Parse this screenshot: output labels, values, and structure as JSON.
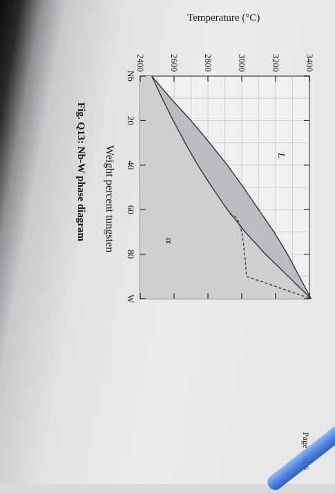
{
  "chart_data": {
    "type": "phase diagram",
    "title": "Fig. Q13: Nb-W phase diagram",
    "xlabel": "Weight percent tungsten",
    "ylabel": "Temperature (°C)",
    "xlim": [
      0,
      100
    ],
    "ylim": [
      2400,
      3400
    ],
    "x_ticks": [
      "Nb",
      "20",
      "40",
      "60",
      "80",
      "W"
    ],
    "y_ticks": [
      "2400",
      "2600",
      "2800",
      "3000",
      "3200",
      "3400"
    ],
    "regions": [
      {
        "label": "L",
        "x": 35,
        "y": 3180
      },
      {
        "label": "α",
        "x": 72,
        "y": 2700
      }
    ],
    "series": [
      {
        "name": "",
        "line": "liquidus",
        "x": [
          0,
          10,
          20,
          30,
          40,
          50,
          60,
          70,
          80,
          90,
          100
        ],
        "y": [
          2468,
          2580,
          2700,
          2810,
          2915,
          3010,
          3100,
          3190,
          3270,
          3340,
          3410
        ]
      },
      {
        "name": "",
        "line": "solidus",
        "x": [
          0,
          10,
          20,
          30,
          40,
          50,
          60,
          70,
          80,
          90,
          100
        ],
        "y": [
          2468,
          2530,
          2595,
          2665,
          2740,
          2825,
          2915,
          3020,
          3140,
          3275,
          3410
        ]
      },
      {
        "name": "",
        "line": "dashed",
        "x": [
          62,
          63,
          66,
          70,
          75,
          82,
          90,
          100
        ],
        "y": [
          2930,
          2960,
          2985,
          3000,
          3010,
          3020,
          3028,
          3410
        ]
      }
    ],
    "grid": true
  },
  "page": {
    "footer": "Page 5 of 6"
  }
}
